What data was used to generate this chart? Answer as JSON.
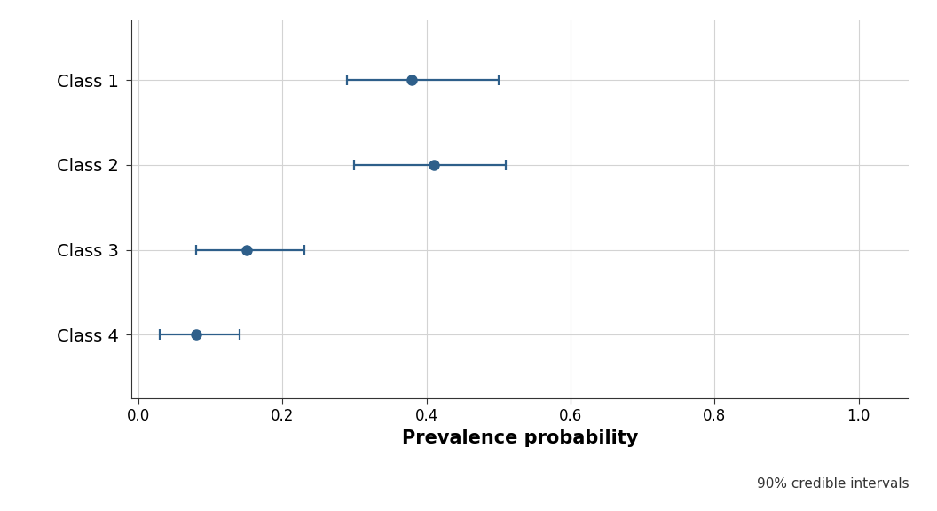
{
  "categories": [
    "Class 1",
    "Class 2",
    "Class 3",
    "Class 4"
  ],
  "centers": [
    0.38,
    0.41,
    0.15,
    0.08
  ],
  "ci_low": [
    0.29,
    0.3,
    0.08,
    0.03
  ],
  "ci_high": [
    0.5,
    0.51,
    0.23,
    0.14
  ],
  "point_color": "#2e5f8a",
  "line_color": "#2e5f8a",
  "xlabel": "Prevalence probability",
  "annotation": "90% credible intervals",
  "xlim": [
    -0.01,
    1.07
  ],
  "xticks": [
    0.0,
    0.2,
    0.4,
    0.6,
    0.8,
    1.0
  ],
  "background_color": "#ffffff",
  "panel_background": "#ffffff",
  "grid_color": "#d3d3d3",
  "line_width": 1.6,
  "cap_size": 4,
  "xlabel_fontsize": 15,
  "tick_fontsize": 12,
  "label_fontsize": 14,
  "annotation_fontsize": 11,
  "spine_color": "#333333"
}
